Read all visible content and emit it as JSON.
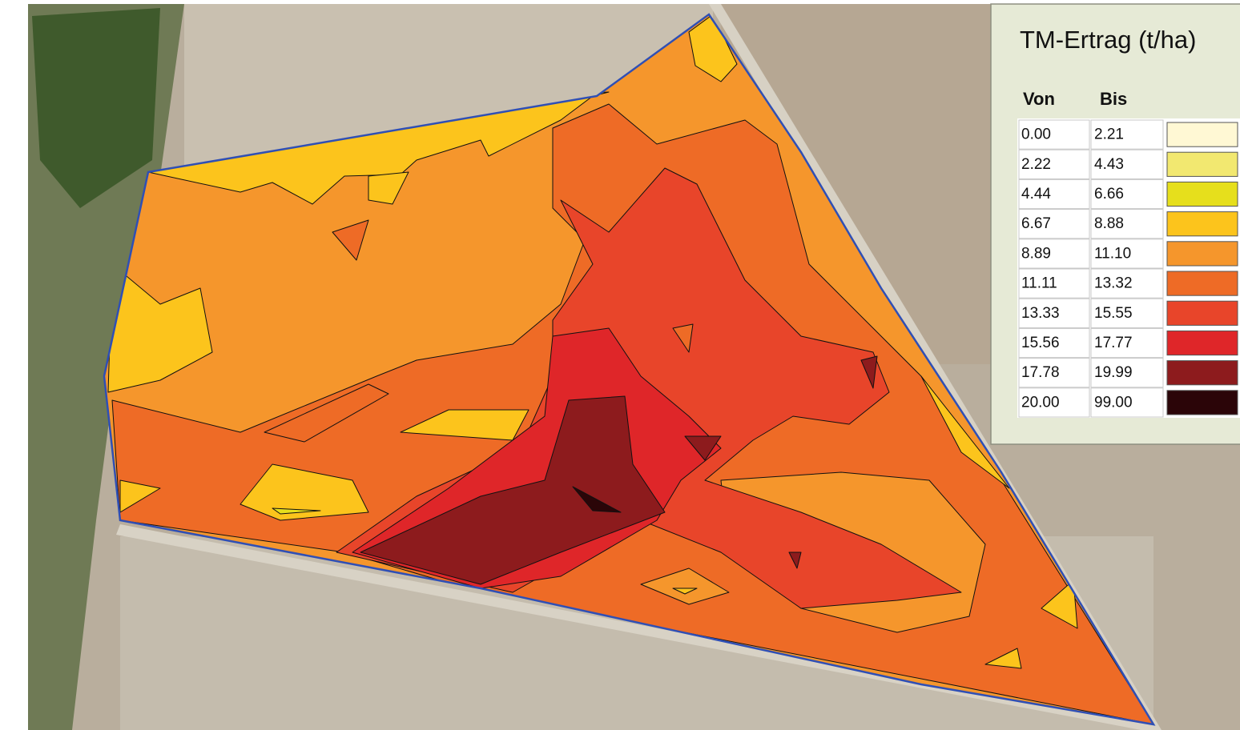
{
  "legend": {
    "title": "TM-Ertrag (t/ha)",
    "headers": [
      "Von",
      "Bis"
    ],
    "rows": [
      {
        "from": "0.00",
        "to": "2.21",
        "color": "#fff8d4"
      },
      {
        "from": "2.22",
        "to": "4.43",
        "color": "#f2e870"
      },
      {
        "from": "4.44",
        "to": "6.66",
        "color": "#e6df1c"
      },
      {
        "from": "6.67",
        "to": "8.88",
        "color": "#fcc41c"
      },
      {
        "from": "8.89",
        "to": "11.10",
        "color": "#f5962c"
      },
      {
        "from": "11.11",
        "to": "13.32",
        "color": "#ee6b26"
      },
      {
        "from": "13.33",
        "to": "15.55",
        "color": "#e8452a"
      },
      {
        "from": "15.56",
        "to": "17.77",
        "color": "#df2629"
      },
      {
        "from": "17.78",
        "to": "19.99",
        "color": "#8d1b1d"
      },
      {
        "from": "20.00",
        "to": "99.00",
        "color": "#2b0508"
      }
    ]
  }
}
